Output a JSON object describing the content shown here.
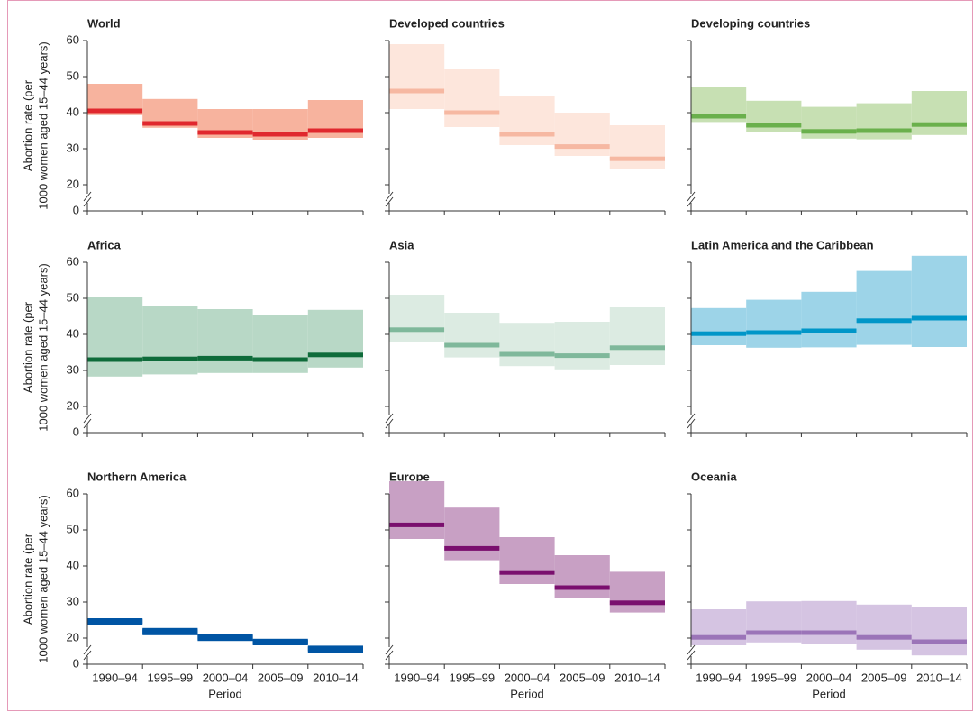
{
  "categories": [
    "1990–94",
    "1995–99",
    "2000–04",
    "2005–09",
    "2010–14"
  ],
  "y_label": [
    "Abortion rate (per",
    "1000 women aged 15–44 years)"
  ],
  "x_label": "Period",
  "ylim": [
    20,
    60
  ],
  "yticks": [
    0,
    20,
    30,
    40,
    50,
    60
  ],
  "axis_break": true,
  "chart_data": [
    {
      "type": "band",
      "title": "World",
      "color": "#e0282e",
      "fill": "#f7b39e",
      "values": [
        40.5,
        37,
        34.5,
        34,
        35
      ],
      "upper": [
        48,
        43.8,
        41,
        41,
        43.5
      ],
      "lower": [
        39.3,
        35.8,
        33,
        32.5,
        33
      ]
    },
    {
      "type": "band",
      "title": "Developed countries",
      "color": "#f6b8a2",
      "fill": "#fde6dc",
      "values": [
        46,
        40,
        34,
        30.6,
        27.2
      ],
      "upper": [
        59,
        52,
        44.5,
        40,
        36.5
      ],
      "lower": [
        41,
        36,
        31,
        28,
        24.5
      ]
    },
    {
      "type": "band",
      "title": "Developing countries",
      "color": "#6ab04c",
      "fill": "#c7e0b3",
      "values": [
        39,
        36.5,
        34.8,
        35,
        36.7
      ],
      "upper": [
        47,
        43.3,
        41.6,
        42.6,
        46
      ],
      "lower": [
        37.4,
        34.5,
        32.8,
        32.6,
        33.8
      ]
    },
    {
      "type": "band",
      "title": "Africa",
      "color": "#0e6b3a",
      "fill": "#b8d8c6",
      "values": [
        33,
        33.2,
        33.4,
        33,
        34.3
      ],
      "upper": [
        50.5,
        48,
        47,
        45.5,
        46.8
      ],
      "lower": [
        28.3,
        28.9,
        29.3,
        29.3,
        30.8
      ]
    },
    {
      "type": "band",
      "title": "Asia",
      "color": "#7fb89b",
      "fill": "#dcebe2",
      "values": [
        41.3,
        37,
        34.5,
        34.1,
        36.3
      ],
      "upper": [
        51,
        46,
        43.2,
        43.5,
        47.5
      ],
      "lower": [
        37.8,
        33.6,
        31.2,
        30.3,
        31.5
      ]
    },
    {
      "type": "band",
      "title": "Latin America and the Caribbean",
      "color": "#0096c8",
      "fill": "#9dd4e8",
      "values": [
        40.2,
        40.5,
        41,
        43.8,
        44.5
      ],
      "upper": [
        47.3,
        49.6,
        51.8,
        57.6,
        61.8
      ],
      "lower": [
        37,
        36.3,
        36.4,
        37.1,
        36.5
      ]
    },
    {
      "type": "band",
      "title": "Northern America",
      "color": "#0055a4",
      "fill": "#0055a4",
      "values": [
        24.6,
        21.8,
        20.2,
        18.9,
        17
      ],
      "upper": [
        25.5,
        22.8,
        21.2,
        19.8,
        17.9
      ],
      "lower": [
        23.6,
        20.8,
        19.2,
        18,
        16
      ]
    },
    {
      "type": "band",
      "title": "Europe",
      "color": "#7a0f6e",
      "fill": "#c8a0c4",
      "values": [
        51.4,
        44.9,
        38.2,
        34,
        29.8
      ],
      "upper": [
        63.5,
        56.2,
        48,
        43,
        38.4
      ],
      "lower": [
        47.5,
        41.6,
        35,
        31,
        27.1
      ]
    },
    {
      "type": "band",
      "title": "Oceania",
      "color": "#9b74b8",
      "fill": "#d5c4e2",
      "values": [
        20.2,
        21.5,
        21.5,
        20.2,
        19
      ],
      "upper": [
        28,
        30.2,
        30.3,
        29.3,
        28.7
      ],
      "lower": [
        18,
        18.8,
        18.5,
        16.8,
        15.2
      ]
    }
  ]
}
